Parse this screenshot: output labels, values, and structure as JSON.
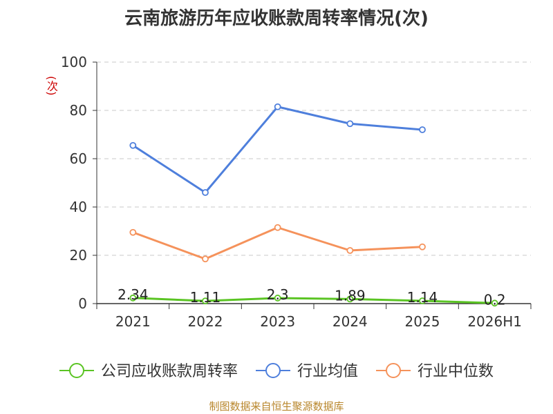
{
  "chart_data": {
    "type": "line",
    "title": "云南旅游历年应收账款周转率情况(次)",
    "ylabel": "(次)",
    "xlabel": "",
    "categories": [
      "2021",
      "2022",
      "2023",
      "2024",
      "2025",
      "2026H1"
    ],
    "ylim": [
      0,
      100
    ],
    "yticks": [
      0,
      20,
      40,
      60,
      80,
      100
    ],
    "grid": true,
    "legend_position": "bottom",
    "series": [
      {
        "name": "公司应收账款周转率",
        "color": "#5ac423",
        "values": [
          2.34,
          1.11,
          2.3,
          1.89,
          1.14,
          0.2
        ],
        "labels": [
          "2.34",
          "1.11",
          "2.3",
          "1.89",
          "1.14",
          "0.2"
        ]
      },
      {
        "name": "行业均值",
        "color": "#4e7fdc",
        "values": [
          65.5,
          46,
          81.5,
          74.5,
          72,
          null
        ]
      },
      {
        "name": "行业中位数",
        "color": "#f5925b",
        "values": [
          29.5,
          18.5,
          31.5,
          22,
          23.5,
          null
        ]
      }
    ]
  },
  "source_note": "制图数据来自恒生聚源数据库"
}
